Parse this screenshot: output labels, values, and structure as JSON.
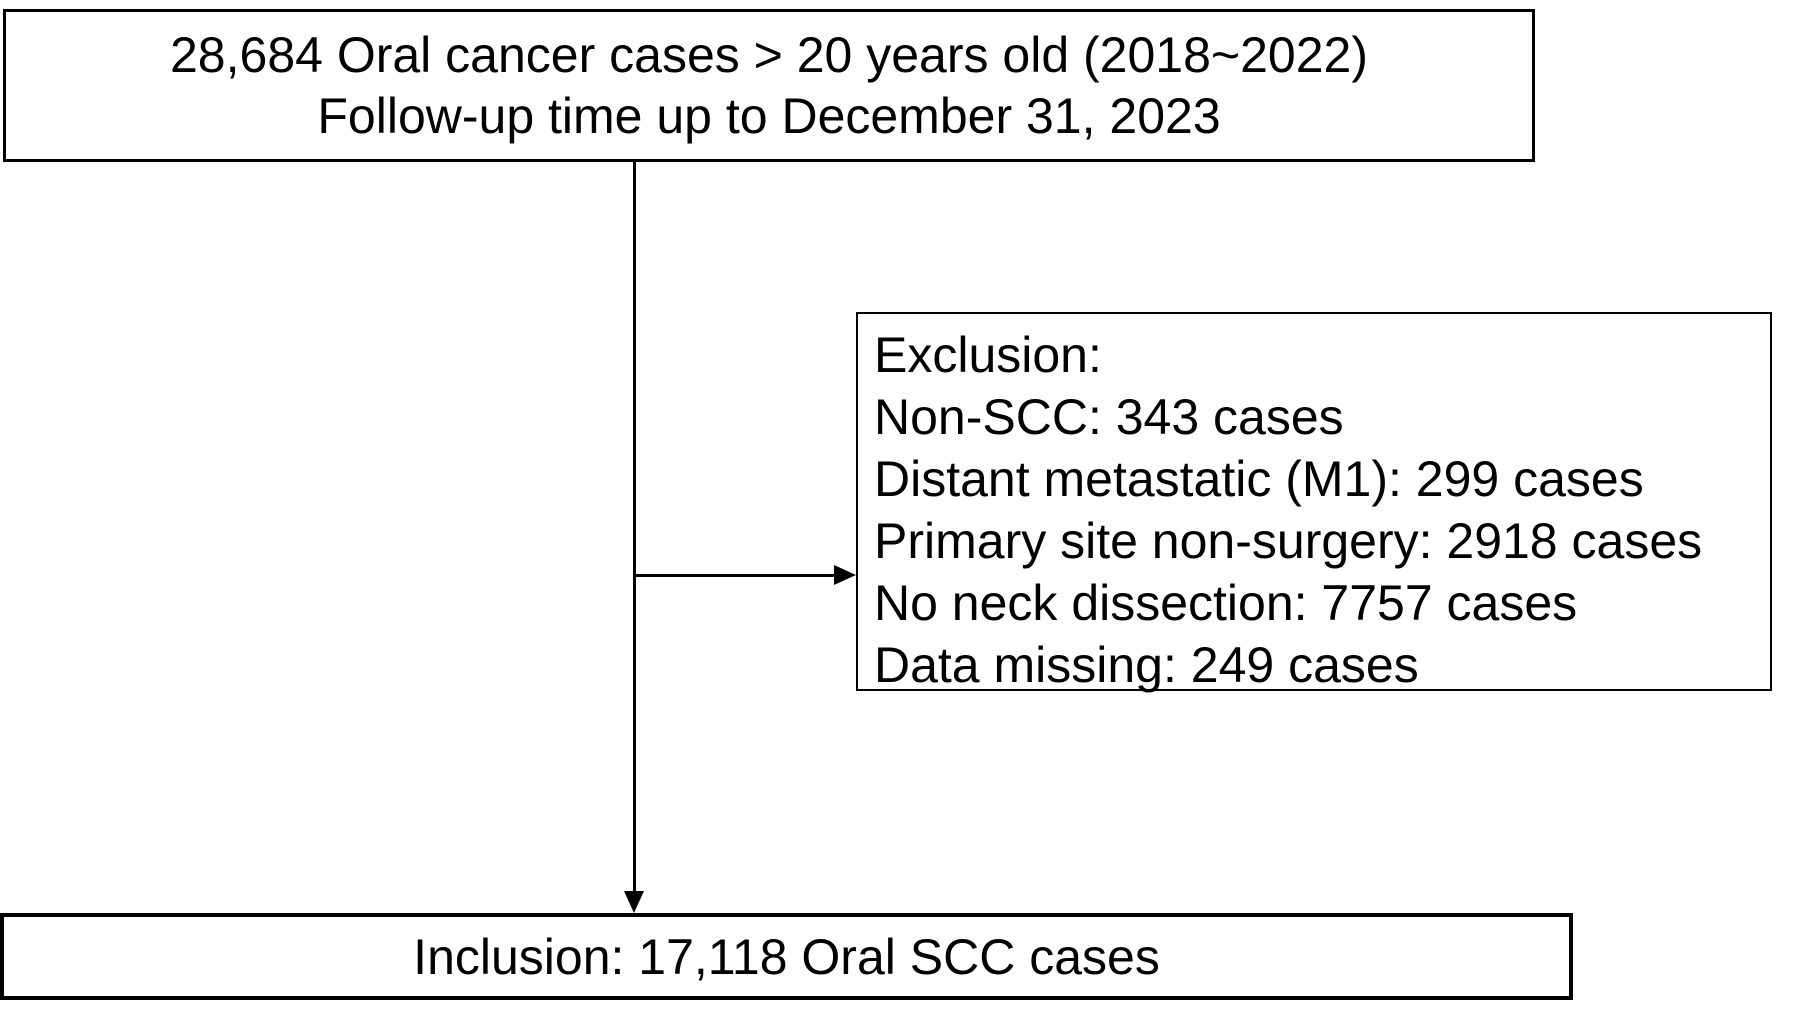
{
  "diagram": {
    "top_box": {
      "line1": "28,684 Oral cancer cases > 20 years old (2018~2022)",
      "line2": "Follow-up time up to December 31, 2023"
    },
    "exclusion_box": {
      "title": "Exclusion:",
      "items": [
        "Non-SCC: 343 cases",
        "Distant metastatic (M1): 299 cases",
        "Primary site non-surgery: 2918 cases",
        "No neck dissection: 7757 cases",
        "Data missing: 249 cases"
      ]
    },
    "bottom_box": {
      "label": "Inclusion: 17,118 Oral SCC cases"
    },
    "colors": {
      "border": "#000000",
      "background": "#ffffff",
      "text": "#000000"
    }
  }
}
